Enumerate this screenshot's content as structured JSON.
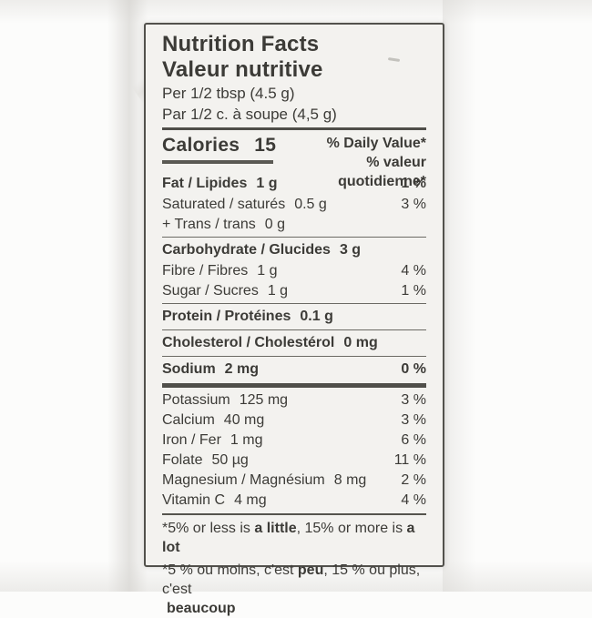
{
  "colors": {
    "text": "#3c3b37",
    "label_bg": "#f3f2ef",
    "border": "#52514c",
    "rule": "#55544e",
    "page_bg": "#fcfcfb"
  },
  "label": {
    "title_en": "Nutrition Facts",
    "title_fr": "Valeur nutritive",
    "serving_en": "Per 1/2 tbsp (4.5 g)",
    "serving_fr": "Par 1/2 c. à soupe (4,5 g)",
    "calories_label": "Calories",
    "calories_value": "15",
    "dv_header_en": "% Daily Value*",
    "dv_header_fr": "% valeur quotidienne*",
    "sections": [
      {
        "rule": "thin",
        "rows": [
          {
            "name": "Fat / Lipides",
            "amount": "1 g",
            "dv": "1 %",
            "bold": true
          },
          {
            "name": "Saturated / saturés",
            "amount": "0.5 g",
            "dv": "3 %",
            "bold": false
          },
          {
            "name": "+ Trans / trans",
            "amount": "0 g",
            "dv": "",
            "bold": false
          }
        ]
      },
      {
        "rule": "thin",
        "rows": [
          {
            "name": "Carbohydrate / Glucides",
            "amount": "3 g",
            "dv": "",
            "bold": true
          },
          {
            "name": "Fibre / Fibres",
            "amount": "1 g",
            "dv": "4 %",
            "bold": false
          },
          {
            "name": "Sugar / Sucres",
            "amount": "1 g",
            "dv": "1 %",
            "bold": false
          }
        ]
      },
      {
        "rule": "thin",
        "rows": [
          {
            "name": "Protein / Protéines",
            "amount": "0.1 g",
            "dv": "",
            "bold": true
          }
        ]
      },
      {
        "rule": "thin",
        "rows": [
          {
            "name": "Cholesterol / Cholestérol",
            "amount": "0 mg",
            "dv": "",
            "bold": true
          }
        ]
      },
      {
        "rule": "thick",
        "rows": [
          {
            "name": "Sodium",
            "amount": "2 mg",
            "dv": "0 %",
            "bold": true
          }
        ]
      },
      {
        "rule": "medium",
        "rows": [
          {
            "name": "Potassium",
            "amount": "125 mg",
            "dv": "3 %",
            "bold": false
          },
          {
            "name": "Calcium",
            "amount": "40 mg",
            "dv": "3 %",
            "bold": false
          },
          {
            "name": "Iron / Fer",
            "amount": "1 mg",
            "dv": "6 %",
            "bold": false
          },
          {
            "name": "Folate",
            "amount": "50 µg",
            "dv": "11 %",
            "bold": false
          },
          {
            "name": "Magnesium / Magnésium",
            "amount": "8 mg",
            "dv": "2 %",
            "bold": false
          },
          {
            "name": "Vitamin C",
            "amount": "4 mg",
            "dv": "4 %",
            "bold": false
          }
        ]
      }
    ],
    "footnotes": [
      {
        "indent": false,
        "segments": [
          {
            "t": "*5% or less is ",
            "b": false
          },
          {
            "t": "a little",
            "b": true
          },
          {
            "t": ", 15% or more is ",
            "b": false
          },
          {
            "t": "a lot",
            "b": true
          }
        ]
      },
      {
        "indent": false,
        "segments": [
          {
            "t": "*5 % ou moins, c'est ",
            "b": false
          },
          {
            "t": "peu",
            "b": true
          },
          {
            "t": ", 15 % ou plus, c'est",
            "b": false
          }
        ]
      },
      {
        "indent": true,
        "segments": [
          {
            "t": "beaucoup",
            "b": true
          }
        ]
      }
    ]
  }
}
